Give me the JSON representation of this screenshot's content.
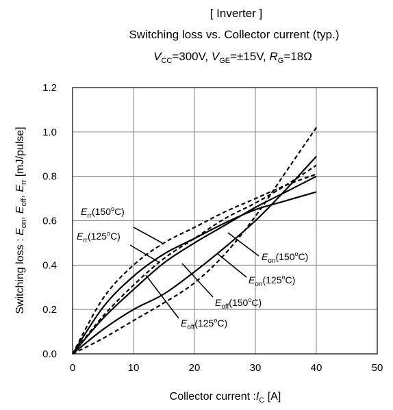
{
  "title": {
    "line1": "[ Inverter ]",
    "line2": "Switching loss  vs.  Collector current  (typ.)",
    "cond": [
      {
        "t": "V",
        "s": "CC",
        "v": "=300V,  "
      },
      {
        "t": "V",
        "s": "GE",
        "v": "=±15V,  "
      },
      {
        "t": "R",
        "s": "G",
        "v": "=18Ω"
      }
    ]
  },
  "chart_data": {
    "type": "line",
    "xlabel": "Collector  current :I C [A]",
    "ylabel": "Switching loss : E on, E off, E rr [mJ/pulse]",
    "xlabel_parts": {
      "pre": "Collector  current :",
      "sym": "I",
      "sub": "C",
      "post": " [A]"
    },
    "ylabel_parts": [
      {
        "t": "Switching loss  : "
      },
      {
        "t": "E",
        "i": true
      },
      {
        "t": "on",
        "s": true
      },
      {
        "t": ", "
      },
      {
        "t": "E",
        "i": true
      },
      {
        "t": "off",
        "s": true
      },
      {
        "t": ", "
      },
      {
        "t": "E",
        "i": true
      },
      {
        "t": "rr",
        "s": true
      },
      {
        "t": "  [mJ/pulse]"
      }
    ],
    "xlim": [
      0,
      50
    ],
    "ylim": [
      0,
      1.2
    ],
    "xticks": [
      "0",
      "10",
      "20",
      "30",
      "40",
      "50"
    ],
    "yticks": [
      "0.0",
      "0.2",
      "0.4",
      "0.6",
      "0.8",
      "1.0",
      "1.2"
    ],
    "grid": true,
    "series": [
      {
        "name": "Eon(150oC)",
        "style": "dashed",
        "x": [
          0,
          5,
          10,
          15,
          20,
          25,
          30,
          35,
          40
        ],
        "y": [
          0,
          0.07,
          0.15,
          0.23,
          0.32,
          0.45,
          0.62,
          0.82,
          1.02
        ]
      },
      {
        "name": "Eon(125oC)",
        "style": "solid",
        "x": [
          0,
          5,
          10,
          15,
          20,
          25,
          30,
          35,
          40
        ],
        "y": [
          0,
          0.11,
          0.2,
          0.27,
          0.37,
          0.48,
          0.6,
          0.74,
          0.89
        ]
      },
      {
        "name": "Eoff(150oC)",
        "style": "dashed",
        "x": [
          0,
          5,
          10,
          15,
          20,
          25,
          30,
          35,
          40
        ],
        "y": [
          0,
          0.17,
          0.31,
          0.43,
          0.52,
          0.61,
          0.68,
          0.76,
          0.85
        ]
      },
      {
        "name": "Eoff(125oC)",
        "style": "solid",
        "x": [
          0,
          5,
          10,
          15,
          20,
          25,
          30,
          35,
          40
        ],
        "y": [
          0,
          0.16,
          0.29,
          0.41,
          0.5,
          0.58,
          0.66,
          0.73,
          0.8
        ]
      },
      {
        "name": "Err(150oC)",
        "style": "dashed",
        "x": [
          0,
          5,
          10,
          15,
          20,
          25,
          30,
          35,
          40
        ],
        "y": [
          0,
          0.25,
          0.4,
          0.5,
          0.57,
          0.64,
          0.7,
          0.76,
          0.81
        ]
      },
      {
        "name": "Err(125oC)",
        "style": "solid",
        "x": [
          0,
          5,
          10,
          15,
          20,
          25,
          30,
          35,
          40
        ],
        "y": [
          0,
          0.21,
          0.35,
          0.45,
          0.52,
          0.59,
          0.65,
          0.69,
          0.73
        ]
      }
    ],
    "annotations": [
      {
        "sym": "E",
        "sub": "rr",
        "rest": "(150",
        "sup": "o",
        "end": "C)",
        "series": 4
      },
      {
        "sym": "E",
        "sub": "rr",
        "rest": "(125",
        "sup": "o",
        "end": "C)",
        "series": 5
      },
      {
        "sym": "E",
        "sub": "on",
        "rest": "(150",
        "sup": "o",
        "end": "C)",
        "series": 0
      },
      {
        "sym": "E",
        "sub": "on",
        "rest": "(125",
        "sup": "o",
        "end": "C)",
        "series": 1
      },
      {
        "sym": "E",
        "sub": "off",
        "rest": "(150",
        "sup": "o",
        "end": "C)",
        "series": 2
      },
      {
        "sym": "E",
        "sub": "off",
        "rest": "(125",
        "sup": "o",
        "end": "C)",
        "series": 3
      }
    ]
  }
}
